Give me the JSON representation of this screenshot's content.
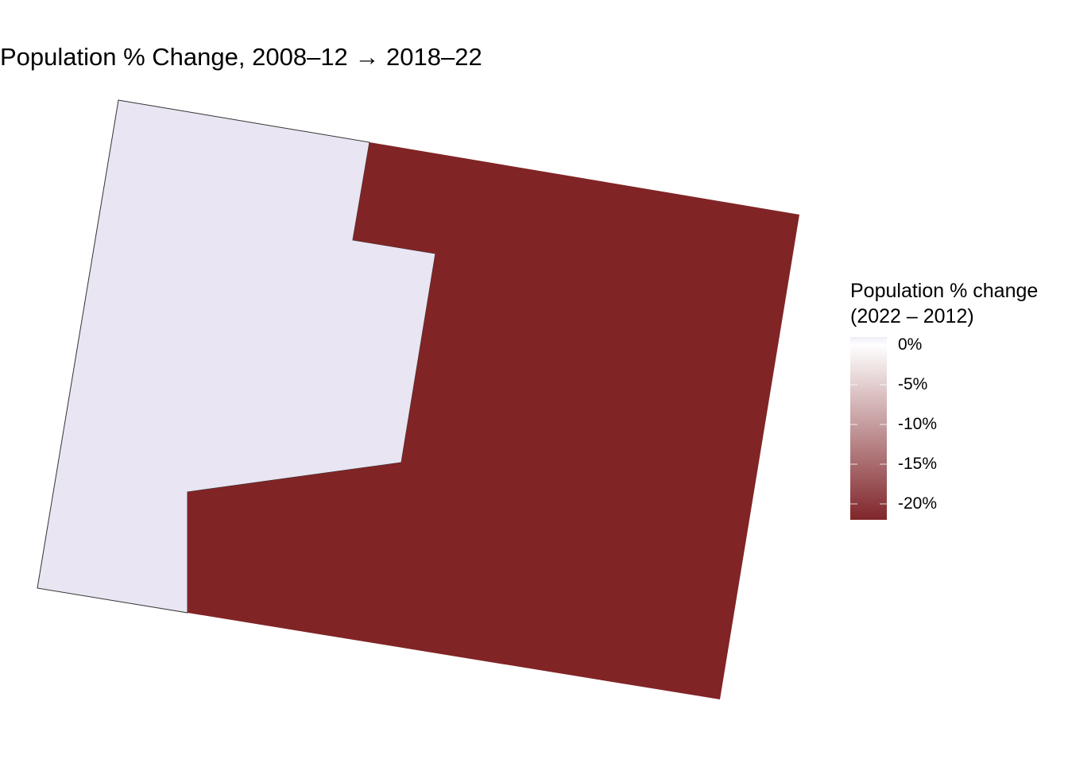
{
  "title": "Population % Change, 2008–12 → 2018–22",
  "legend": {
    "title_line1": "Population % change",
    "title_line2": "(2022 – 2012)",
    "scale_min": -22,
    "scale_max": 1,
    "color_low": "#80262a",
    "color_mid": "#ffffff",
    "color_high": "#eeeef8",
    "breaks": [
      {
        "value": 0,
        "label": "0%"
      },
      {
        "value": -5,
        "label": "-5%"
      },
      {
        "value": -10,
        "label": "-10%"
      },
      {
        "value": -15,
        "label": "-15%"
      },
      {
        "value": -20,
        "label": "-20%"
      }
    ]
  },
  "map": {
    "regions": [
      {
        "id": "west-tract",
        "fill": "#e9e5f2",
        "category": "no-decline"
      },
      {
        "id": "east-tract",
        "fill": "#812426",
        "category": "large-decline"
      }
    ],
    "border_color": "#333333"
  }
}
